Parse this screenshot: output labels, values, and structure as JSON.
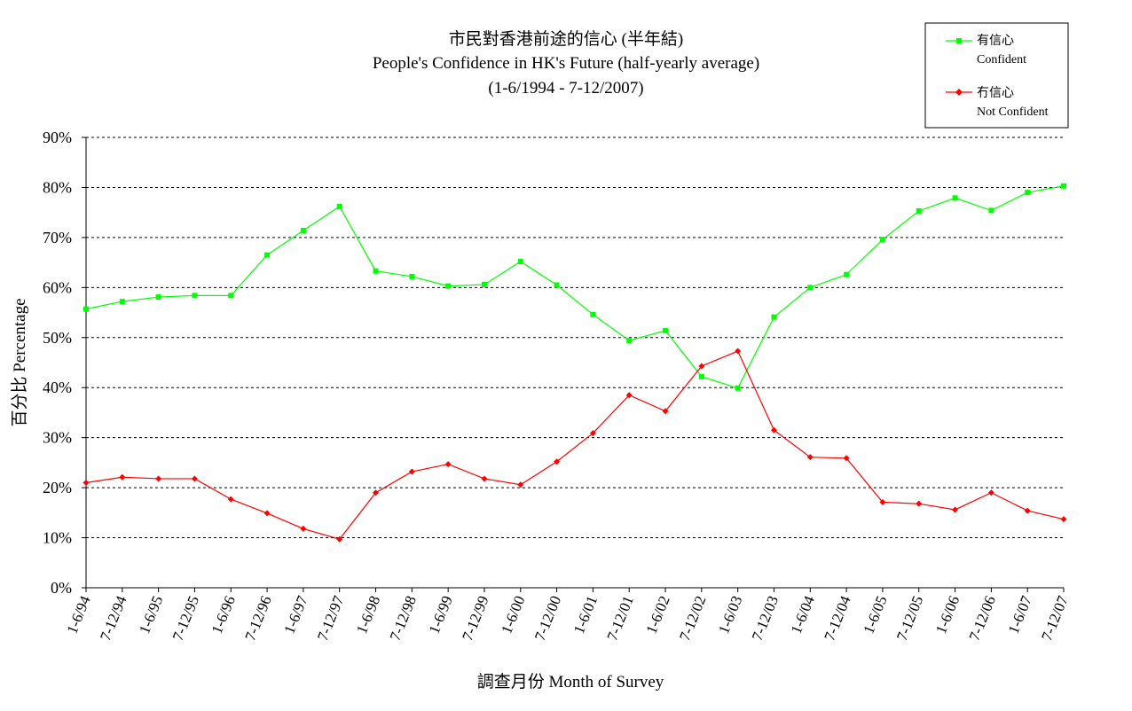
{
  "chart_data": {
    "type": "line",
    "title": "市民對香港前途的信心 (半年結)",
    "subtitle": "People's Confidence in HK's Future (half-yearly average)",
    "period": "(1-6/1994 - 7-12/2007)",
    "xlabel": "調查月份 Month of Survey",
    "ylabel": "百分比 Percentage",
    "ylim": [
      0,
      90
    ],
    "yticks": [
      "0%",
      "10%",
      "20%",
      "30%",
      "40%",
      "50%",
      "60%",
      "70%",
      "80%",
      "90%"
    ],
    "grid": true,
    "legend_position": "top-right",
    "categories": [
      "1-6/94",
      "7-12/94",
      "1-6/95",
      "7-12/95",
      "1-6/96",
      "7-12/96",
      "1-6/97",
      "7-12/97",
      "1-6/98",
      "7-12/98",
      "1-6/99",
      "7-12/99",
      "1-6/00",
      "7-12/00",
      "1-6/01",
      "7-12/01",
      "1-6/02",
      "7-12/02",
      "1-6/03",
      "7-12/03",
      "1-6/04",
      "7-12/04",
      "1-6/05",
      "7-12/05",
      "1-6/06",
      "7-12/06",
      "1-6/07",
      "7-12/07"
    ],
    "series": [
      {
        "name_zh": "有信心",
        "name_en": "Confident",
        "color": "#00ff00",
        "marker": "square",
        "values": [
          55.7,
          57.2,
          58.1,
          58.4,
          58.4,
          66.5,
          71.4,
          76.2,
          63.3,
          62.2,
          60.3,
          60.6,
          65.2,
          60.5,
          54.6,
          49.4,
          51.4,
          42.2,
          39.9,
          54.1,
          60.0,
          62.6,
          69.6,
          75.3,
          77.9,
          75.4,
          79.0,
          80.3
        ]
      },
      {
        "name_zh": "冇信心",
        "name_en": "Not Confident",
        "color": "#ff0000",
        "marker": "diamond",
        "values": [
          21.0,
          22.1,
          21.8,
          21.8,
          17.7,
          14.9,
          11.8,
          9.7,
          19.0,
          23.2,
          24.7,
          21.8,
          20.6,
          25.2,
          30.9,
          38.5,
          35.3,
          44.3,
          47.3,
          31.5,
          26.1,
          25.9,
          17.1,
          16.8,
          15.6,
          19.0,
          15.4,
          13.7
        ]
      }
    ]
  }
}
